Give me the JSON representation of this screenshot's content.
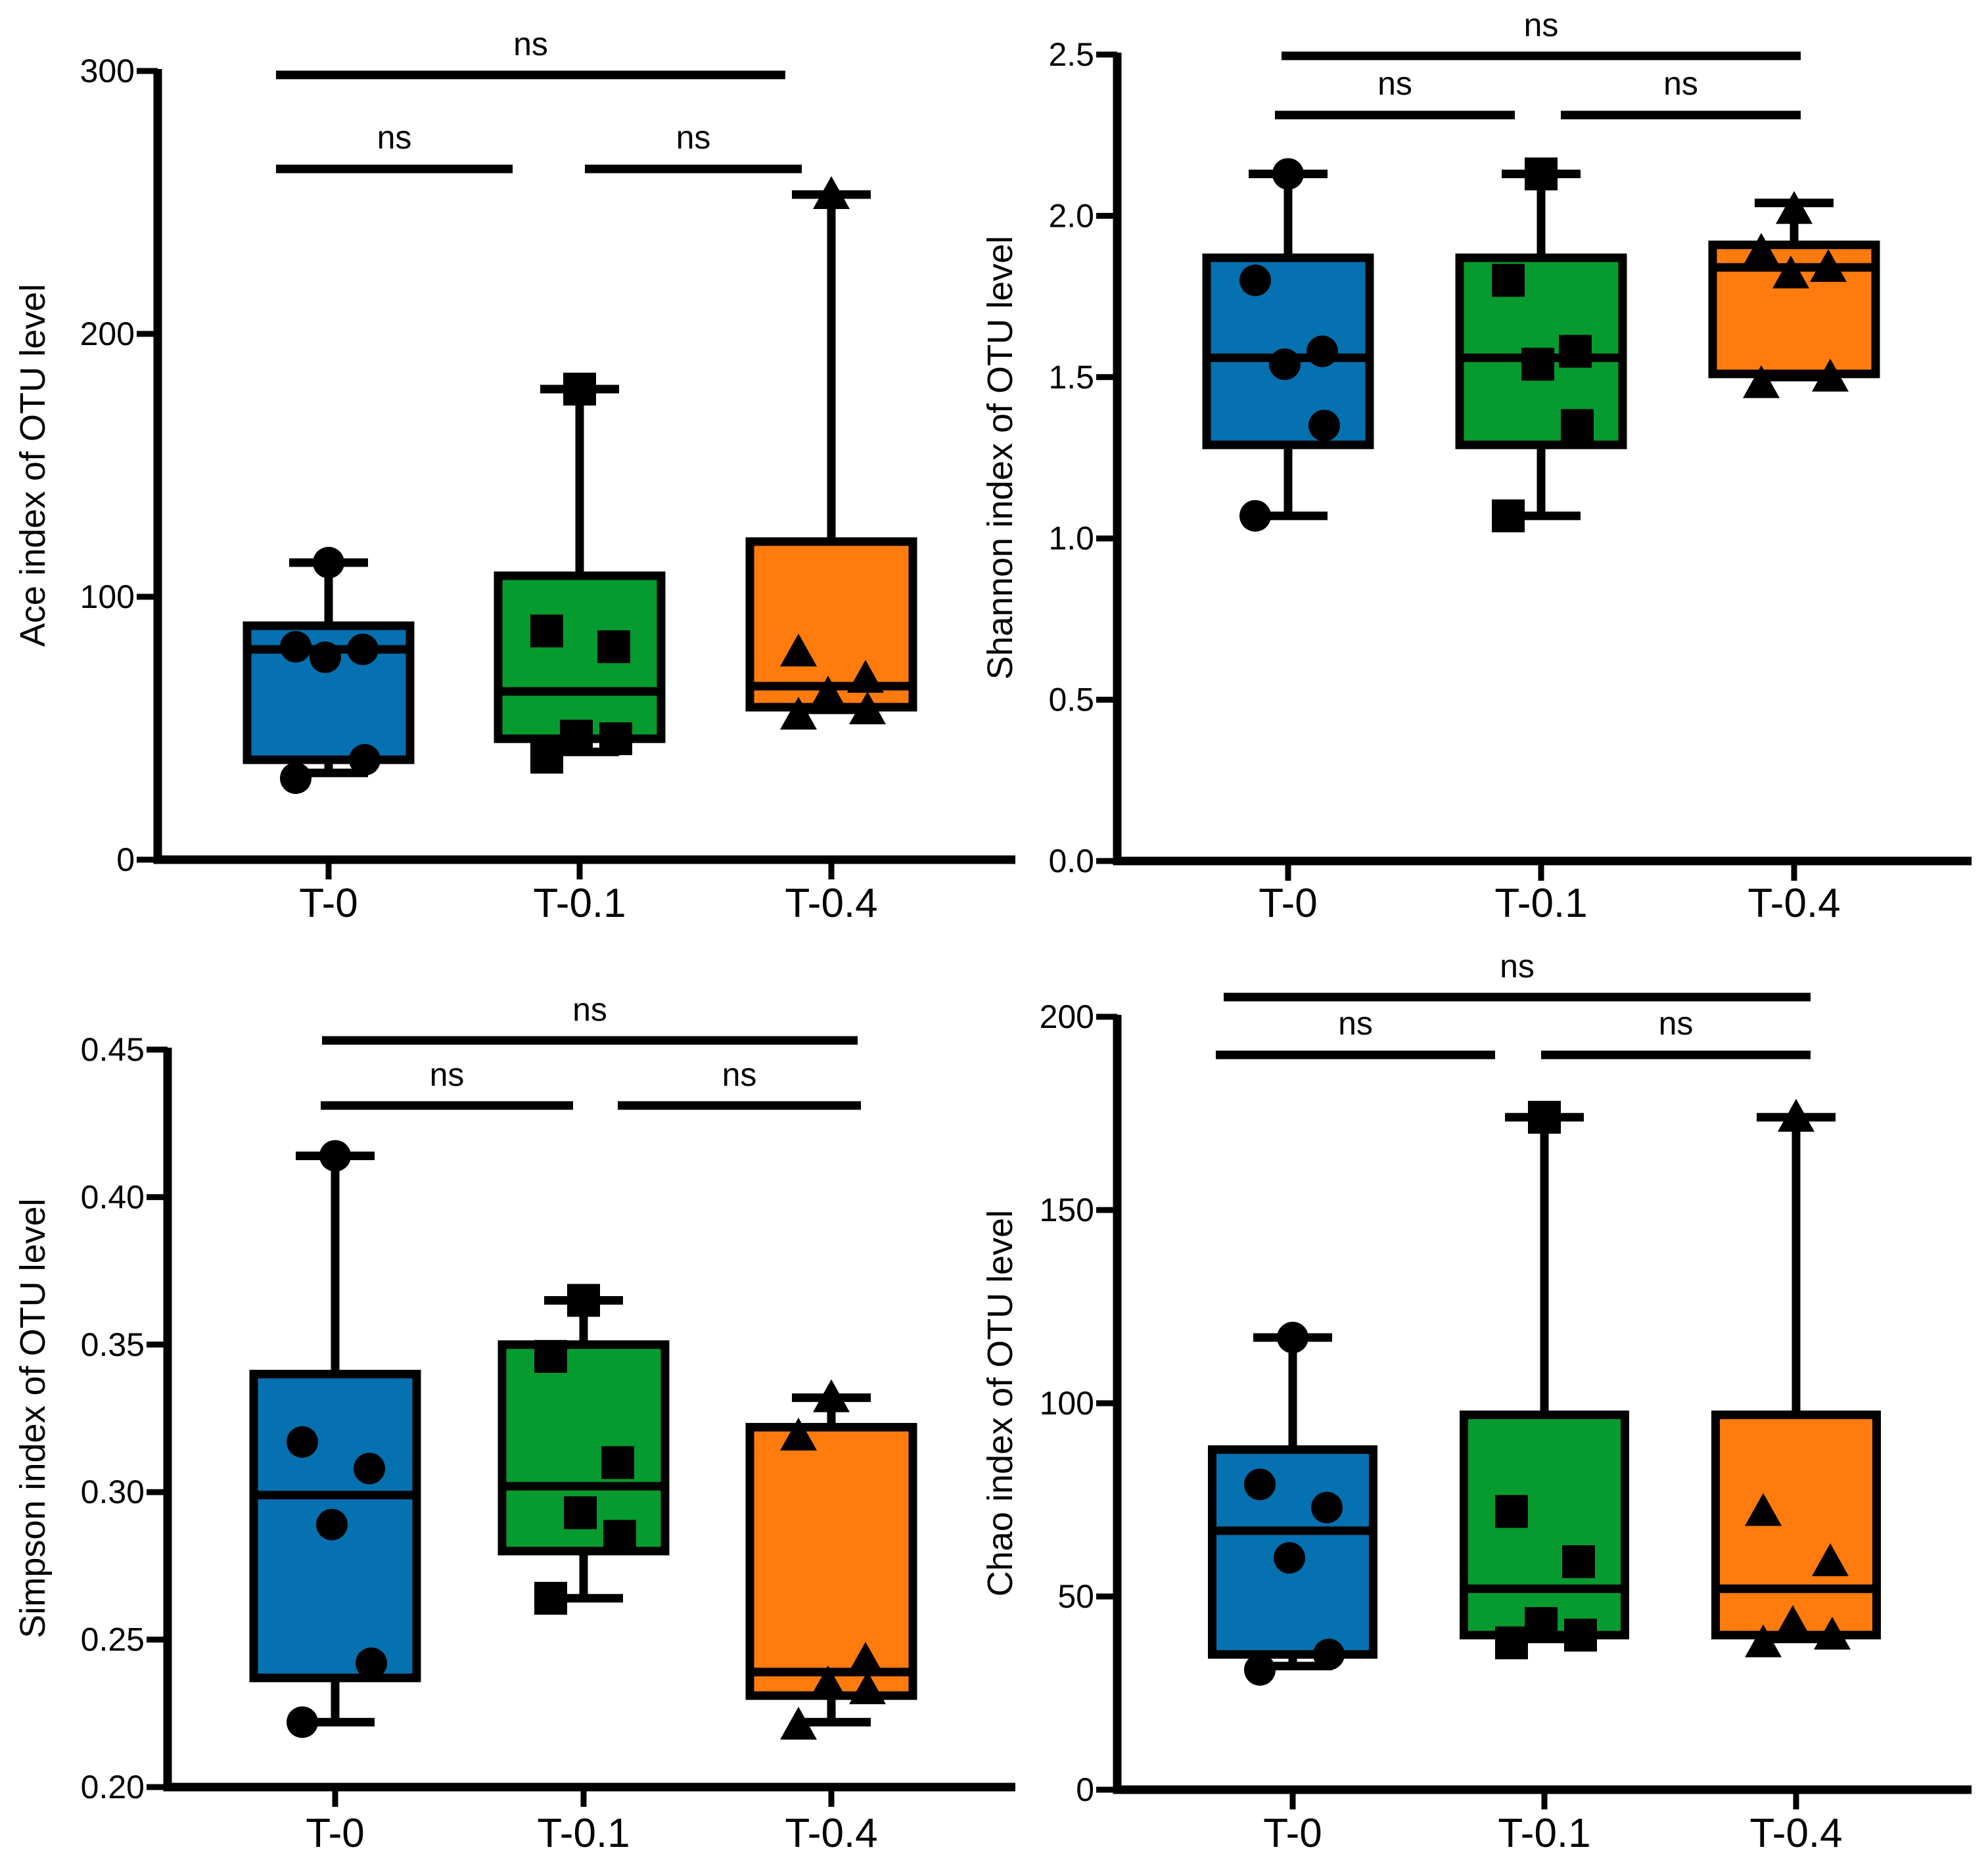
{
  "colors": {
    "T-0": "#0571b0",
    "T-0.1": "#069b2f",
    "T-0.4": "#ff7b0d",
    "line": "#000000"
  },
  "chart_data": [
    {
      "id": "ace",
      "type": "box",
      "ylabel": "Ace index of OTU level",
      "categories": [
        "T-0",
        "T-0.1",
        "T-0.4"
      ],
      "yticks": [
        "0",
        "100",
        "200",
        "300"
      ],
      "ylim": [
        0,
        300
      ],
      "boxes": [
        {
          "min": 33,
          "q1": 38,
          "median": 80,
          "q3": 89,
          "max": 113
        },
        {
          "min": 41,
          "q1": 46,
          "median": 64,
          "q3": 108,
          "max": 179
        },
        {
          "min": 57,
          "q1": 58,
          "median": 66,
          "q3": 121,
          "max": 253
        }
      ],
      "points": [
        [
          31,
          38,
          77,
          80,
          81,
          113
        ],
        [
          39,
          46,
          47,
          81,
          87,
          179
        ],
        [
          55,
          57,
          63,
          69,
          79,
          253
        ]
      ],
      "comparisons": [
        {
          "from": "T-0",
          "to": "T-0.1",
          "label": "ns"
        },
        {
          "from": "T-0.1",
          "to": "T-0.4",
          "label": "ns"
        },
        {
          "from": "T-0",
          "to": "T-0.4",
          "label": "ns"
        }
      ]
    },
    {
      "id": "shannon",
      "type": "box",
      "ylabel": "Shannon index of OTU level",
      "categories": [
        "T-0",
        "T-0.1",
        "T-0.4"
      ],
      "yticks": [
        "0.0",
        "0.5",
        "1.0",
        "1.5",
        "2.0",
        "2.5"
      ],
      "ylim": [
        0,
        2.5
      ],
      "boxes": [
        {
          "min": 1.07,
          "q1": 1.29,
          "median": 1.56,
          "q3": 1.87,
          "max": 2.13
        },
        {
          "min": 1.07,
          "q1": 1.29,
          "median": 1.56,
          "q3": 1.87,
          "max": 2.13
        },
        {
          "min": 1.5,
          "q1": 1.51,
          "median": 1.84,
          "q3": 1.91,
          "max": 2.04
        }
      ],
      "points": [
        [
          1.07,
          1.35,
          1.54,
          1.58,
          1.8,
          2.13
        ],
        [
          1.07,
          1.35,
          1.54,
          1.58,
          1.8,
          2.13
        ],
        [
          1.48,
          1.5,
          1.82,
          1.84,
          1.89,
          2.02
        ]
      ],
      "comparisons": [
        {
          "from": "T-0",
          "to": "T-0.1",
          "label": "ns"
        },
        {
          "from": "T-0.1",
          "to": "T-0.4",
          "label": "ns"
        },
        {
          "from": "T-0",
          "to": "T-0.4",
          "label": "ns"
        }
      ]
    },
    {
      "id": "simpson",
      "type": "box",
      "ylabel": "Simpson index of OTU level",
      "categories": [
        "T-0",
        "T-0.1",
        "T-0.4"
      ],
      "yticks": [
        "0.20",
        "0.25",
        "0.30",
        "0.35",
        "0.40",
        "0.45"
      ],
      "ylim": [
        0.2,
        0.45
      ],
      "boxes": [
        {
          "min": 0.222,
          "q1": 0.237,
          "median": 0.299,
          "q3": 0.34,
          "max": 0.414
        },
        {
          "min": 0.264,
          "q1": 0.28,
          "median": 0.302,
          "q3": 0.35,
          "max": 0.365
        },
        {
          "min": 0.222,
          "q1": 0.231,
          "median": 0.239,
          "q3": 0.322,
          "max": 0.332
        }
      ],
      "points": [
        [
          0.222,
          0.242,
          0.289,
          0.308,
          0.317,
          0.414
        ],
        [
          0.264,
          0.285,
          0.293,
          0.31,
          0.346,
          0.365
        ],
        [
          0.221,
          0.233,
          0.235,
          0.243,
          0.319,
          0.332
        ]
      ],
      "comparisons": [
        {
          "from": "T-0",
          "to": "T-0.1",
          "label": "ns"
        },
        {
          "from": "T-0.1",
          "to": "T-0.4",
          "label": "ns"
        },
        {
          "from": "T-0",
          "to": "T-0.4",
          "label": "ns"
        }
      ]
    },
    {
      "id": "chao",
      "type": "box",
      "ylabel": "Chao index of OTU level",
      "categories": [
        "T-0",
        "T-0.1",
        "T-0.4"
      ],
      "yticks": [
        "0",
        "50",
        "100",
        "150",
        "200"
      ],
      "ylim": [
        0,
        200
      ],
      "boxes": [
        {
          "min": 32,
          "q1": 35,
          "median": 67,
          "q3": 88,
          "max": 117
        },
        {
          "min": 39,
          "q1": 40,
          "median": 52,
          "q3": 97,
          "max": 174
        },
        {
          "min": 39,
          "q1": 40,
          "median": 52,
          "q3": 97,
          "max": 174
        }
      ],
      "points": [
        [
          31,
          35,
          60,
          73,
          79,
          117
        ],
        [
          38,
          40,
          43,
          59,
          72,
          174
        ],
        [
          38,
          40,
          43,
          59,
          72,
          174
        ]
      ],
      "comparisons": [
        {
          "from": "T-0",
          "to": "T-0.1",
          "label": "ns"
        },
        {
          "from": "T-0.1",
          "to": "T-0.4",
          "label": "ns"
        },
        {
          "from": "T-0",
          "to": "T-0.4",
          "label": "ns"
        }
      ]
    }
  ]
}
